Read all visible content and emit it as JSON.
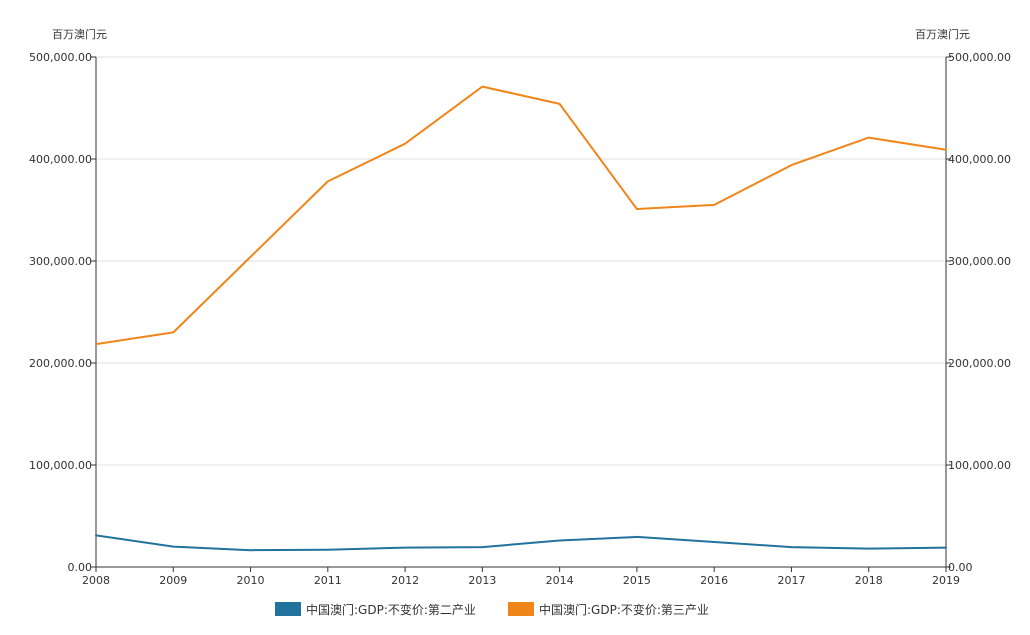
{
  "chart_data": {
    "type": "line",
    "y_unit_left": "百万澳门元",
    "y_unit_right": "百万澳门元",
    "x": [
      "2008",
      "2009",
      "2010",
      "2011",
      "2012",
      "2013",
      "2014",
      "2015",
      "2016",
      "2017",
      "2018",
      "2019"
    ],
    "ylim": [
      0,
      500000
    ],
    "y_ticks": [
      "0.00",
      "100,000.00",
      "200,000.00",
      "300,000.00",
      "400,000.00",
      "500,000.00"
    ],
    "grid": true,
    "legend_position": "bottom-center",
    "series": [
      {
        "name": "中国澳门:GDP:不变价:第二产业",
        "color": "#21729c",
        "values": [
          31000,
          20000,
          16500,
          17000,
          19000,
          19500,
          26000,
          29500,
          24500,
          19500,
          18000,
          19000
        ]
      },
      {
        "name": "中国澳门:GDP:不变价:第三产业",
        "color": "#f0861a",
        "values": [
          218500,
          230000,
          304000,
          378000,
          415000,
          471000,
          454000,
          351000,
          355000,
          394000,
          421000,
          409000
        ]
      }
    ]
  }
}
